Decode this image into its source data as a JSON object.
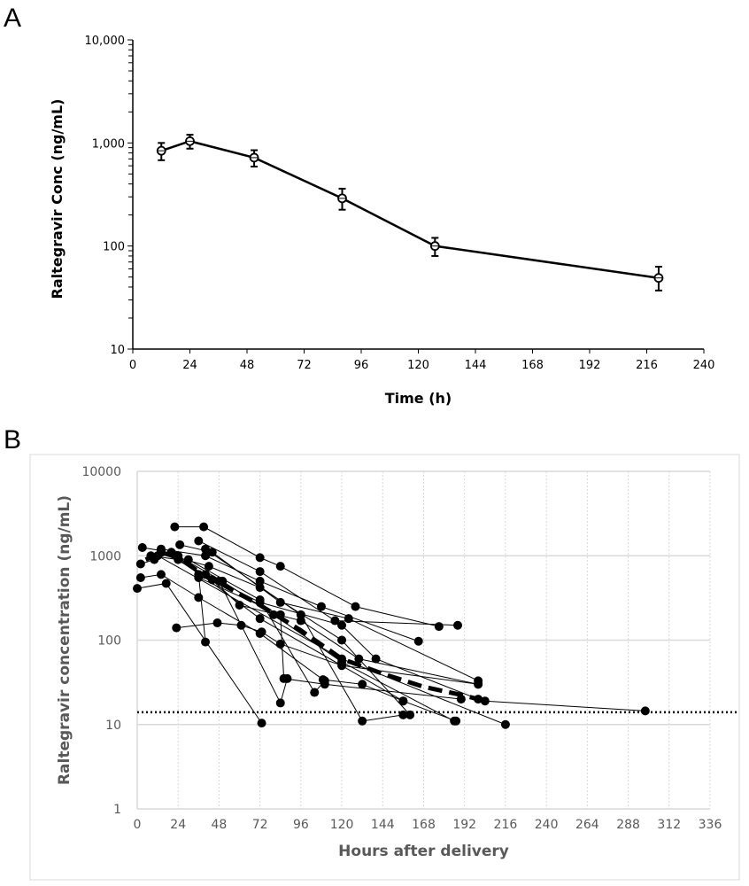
{
  "chart_data": [
    {
      "panel": "A",
      "type": "line",
      "xlabel": "Time (h)",
      "ylabel": "Raltegravir Conc (ng/mL)",
      "xlim": [
        0,
        240
      ],
      "ylim": [
        10,
        10000
      ],
      "yscale": "log",
      "xticks": [
        "0",
        "24",
        "48",
        "72",
        "96",
        "120",
        "144",
        "168",
        "192",
        "216",
        "240"
      ],
      "yticks": [
        "10",
        "100",
        "1,000",
        "10,000"
      ],
      "grid": false,
      "series": [
        {
          "name": "mean",
          "points": [
            {
              "x": 12,
              "y": 840,
              "lo": 680,
              "hi": 1000
            },
            {
              "x": 24,
              "y": 1040,
              "lo": 880,
              "hi": 1200
            },
            {
              "x": 51,
              "y": 720,
              "lo": 590,
              "hi": 850
            },
            {
              "x": 88,
              "y": 290,
              "lo": 225,
              "hi": 360
            },
            {
              "x": 127,
              "y": 100,
              "lo": 80,
              "hi": 120
            },
            {
              "x": 221,
              "y": 49,
              "lo": 37,
              "hi": 63
            }
          ]
        }
      ]
    },
    {
      "panel": "B",
      "type": "line",
      "xlabel": "Hours after delivery",
      "ylabel": "Raltegravir concentration (ng/mL)",
      "xlim": [
        0,
        336
      ],
      "ylim": [
        1,
        10000
      ],
      "yscale": "log",
      "xticks": [
        "0",
        "24",
        "48",
        "72",
        "96",
        "120",
        "144",
        "168",
        "192",
        "216",
        "240",
        "264",
        "288",
        "312",
        "336"
      ],
      "yticks": [
        "1",
        "10",
        "100",
        "1000",
        "10000"
      ],
      "grid": true,
      "reference_line": 14,
      "mean_series": [
        [
          5,
          900
        ],
        [
          14,
          1100
        ],
        [
          24,
          950
        ],
        [
          36,
          650
        ],
        [
          48,
          480
        ],
        [
          72,
          260
        ],
        [
          96,
          130
        ],
        [
          120,
          60
        ],
        [
          144,
          40
        ],
        [
          168,
          28
        ],
        [
          192,
          22
        ],
        [
          204,
          19
        ]
      ],
      "series": [
        [
          [
            22,
            2200
          ],
          [
            39,
            2200
          ],
          [
            72,
            950
          ],
          [
            84,
            750
          ],
          [
            128,
            250
          ],
          [
            177,
            145
          ]
        ],
        [
          [
            36,
            1500
          ],
          [
            72,
            650
          ],
          [
            116,
            170
          ],
          [
            188,
            150
          ]
        ],
        [
          [
            3,
            1250
          ],
          [
            14,
            1150
          ],
          [
            24,
            950
          ],
          [
            42,
            750
          ],
          [
            72,
            420
          ],
          [
            120,
            100
          ],
          [
            160,
            13
          ]
        ],
        [
          [
            14,
            1200
          ],
          [
            40,
            1000
          ],
          [
            72,
            500
          ],
          [
            108,
            250
          ],
          [
            165,
            97
          ]
        ],
        [
          [
            25,
            1350
          ],
          [
            44,
            1100
          ],
          [
            84,
            280
          ],
          [
            124,
            180
          ],
          [
            200,
            33
          ]
        ],
        [
          [
            8,
            1000
          ],
          [
            24,
            900
          ],
          [
            44,
            520
          ],
          [
            60,
            260
          ],
          [
            96,
            170
          ],
          [
            130,
            60
          ],
          [
            200,
            30
          ]
        ],
        [
          [
            2,
            800
          ],
          [
            10,
            900
          ],
          [
            20,
            1100
          ],
          [
            50,
            500
          ],
          [
            80,
            200
          ],
          [
            120,
            55
          ],
          [
            186,
            11
          ]
        ],
        [
          [
            2,
            550
          ],
          [
            14,
            600
          ],
          [
            36,
            320
          ],
          [
            72,
            120
          ],
          [
            109,
            34
          ],
          [
            132,
            30
          ],
          [
            156,
            19
          ]
        ],
        [
          [
            0,
            410
          ],
          [
            17,
            470
          ],
          [
            73,
            10.4
          ]
        ],
        [
          [
            23,
            140
          ],
          [
            47,
            160
          ],
          [
            61,
            150
          ],
          [
            73,
            125
          ],
          [
            84,
            90
          ],
          [
            120,
            50
          ],
          [
            200,
            30
          ]
        ],
        [
          [
            24,
            1000
          ],
          [
            36,
            600
          ],
          [
            40,
            95
          ]
        ],
        [
          [
            36,
            550
          ],
          [
            84,
            200
          ],
          [
            86,
            35
          ],
          [
            110,
            30
          ],
          [
            190,
            20
          ]
        ],
        [
          [
            30,
            900
          ],
          [
            72,
            300
          ],
          [
            104,
            24
          ],
          [
            110,
            33
          ]
        ],
        [
          [
            40,
            1200
          ],
          [
            96,
            200
          ],
          [
            132,
            11
          ],
          [
            156,
            13
          ]
        ],
        [
          [
            14,
            1100
          ],
          [
            48,
            500
          ],
          [
            84,
            18
          ],
          [
            88,
            35
          ]
        ],
        [
          [
            24,
            950
          ],
          [
            72,
            180
          ],
          [
            156,
            19
          ],
          [
            187,
            11
          ]
        ],
        [
          [
            12,
            1000
          ],
          [
            120,
            60
          ],
          [
            216,
            10
          ]
        ],
        [
          [
            204,
            19
          ],
          [
            298,
            14.5
          ]
        ],
        [
          [
            40,
            600
          ],
          [
            72,
            280
          ],
          [
            120,
            150
          ],
          [
            140,
            60
          ],
          [
            200,
            20
          ]
        ]
      ]
    }
  ],
  "labels": {
    "a": "A",
    "b": "B"
  }
}
